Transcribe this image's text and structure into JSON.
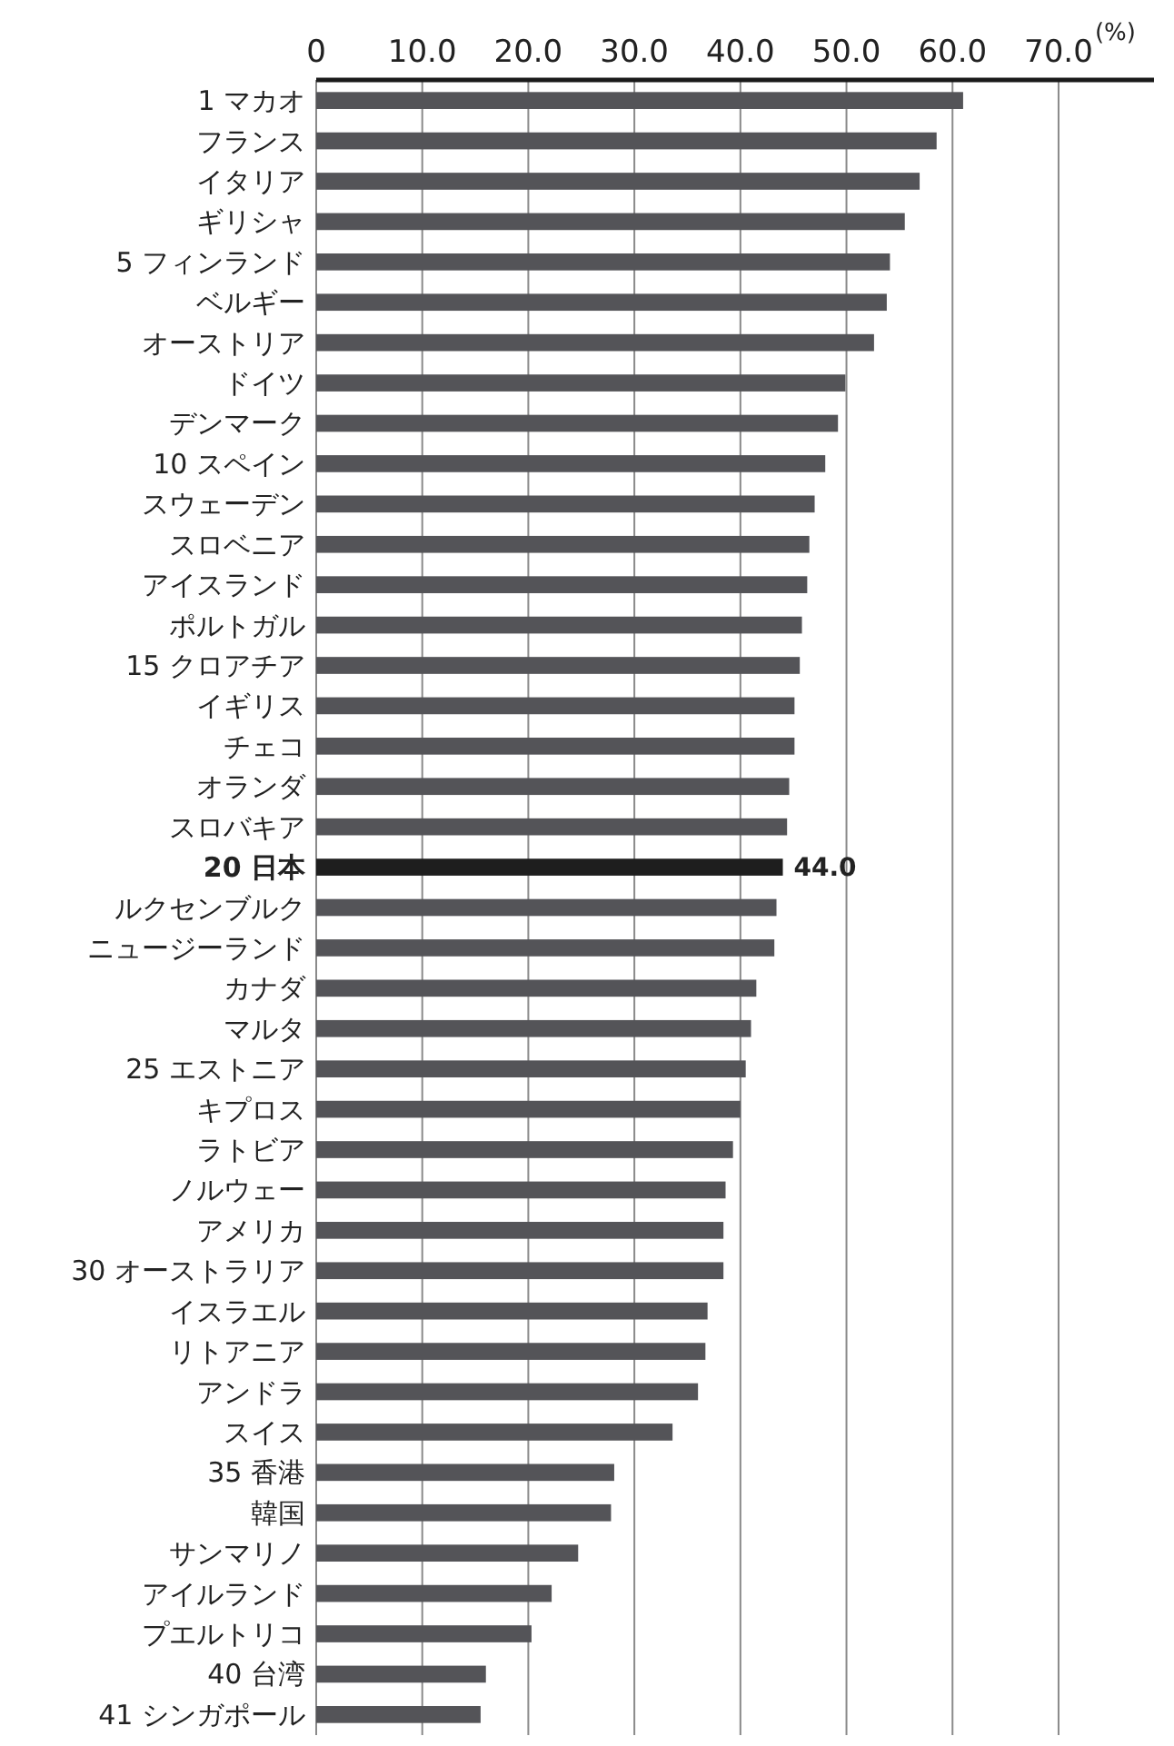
{
  "chart_data": {
    "type": "bar",
    "orientation": "horizontal",
    "xlabel": "(%)",
    "categories": [
      "1 マカオ",
      "フランス",
      "イタリア",
      "ギリシャ",
      "5 フィンランド",
      "ベルギー",
      "オーストリア",
      "ドイツ",
      "デンマーク",
      "10 スペイン",
      "スウェーデン",
      "スロベニア",
      "アイスランド",
      "ポルトガル",
      "15 クロアチア",
      "イギリス",
      "チェコ",
      "オランダ",
      "スロバキア",
      "20 日本",
      "ルクセンブルク",
      "ニュージーランド",
      "カナダ",
      "マルタ",
      "25 エストニア",
      "キプロス",
      "ラトビア",
      "ノルウェー",
      "アメリカ",
      "30 オーストラリア",
      "イスラエル",
      "リトアニア",
      "アンドラ",
      "スイス",
      "35 香港",
      "韓国",
      "サンマリノ",
      "アイルランド",
      "プエルトリコ",
      "40 台湾",
      "41 シンガポール"
    ],
    "values": [
      61.0,
      58.5,
      56.9,
      55.5,
      54.1,
      53.8,
      52.6,
      49.9,
      49.2,
      48.0,
      47.0,
      46.5,
      46.3,
      45.8,
      45.6,
      45.1,
      45.1,
      44.6,
      44.4,
      44.0,
      43.4,
      43.2,
      41.5,
      41.0,
      40.5,
      40.0,
      39.3,
      38.6,
      38.4,
      38.4,
      36.9,
      36.7,
      36.0,
      33.6,
      28.1,
      27.8,
      24.7,
      22.2,
      20.3,
      16.0,
      15.5
    ],
    "colors": [
      "#545458",
      "#545458",
      "#545458",
      "#545458",
      "#545458",
      "#545458",
      "#545458",
      "#545458",
      "#545458",
      "#545458",
      "#545458",
      "#545458",
      "#545458",
      "#545458",
      "#545458",
      "#545458",
      "#545458",
      "#545458",
      "#545458",
      "#1e1e1e",
      "#545458",
      "#545458",
      "#545458",
      "#545458",
      "#545458",
      "#545458",
      "#545458",
      "#545458",
      "#545458",
      "#545458",
      "#545458",
      "#545458",
      "#545458",
      "#545458",
      "#545458",
      "#545458",
      "#545458",
      "#545458",
      "#545458",
      "#545458",
      "#545458"
    ],
    "value_labels": [
      null,
      null,
      null,
      null,
      null,
      null,
      null,
      null,
      null,
      null,
      null,
      null,
      null,
      null,
      null,
      null,
      null,
      null,
      null,
      "44.0",
      null,
      null,
      null,
      null,
      null,
      null,
      null,
      null,
      null,
      null,
      null,
      null,
      null,
      null,
      null,
      null,
      null,
      null,
      null,
      null,
      null
    ],
    "xlim": [
      0,
      79
    ],
    "xticks": [
      0,
      {
        "value": 10,
        "label": "10.0"
      },
      {
        "value": 20,
        "label": "20.0"
      },
      {
        "value": 30,
        "label": "30.0"
      },
      {
        "value": 40,
        "label": "40.0"
      },
      {
        "value": 50,
        "label": "50.0"
      },
      {
        "value": 60,
        "label": "60.0"
      },
      {
        "value": 70,
        "label": "70.0"
      }
    ],
    "grid": "x"
  }
}
